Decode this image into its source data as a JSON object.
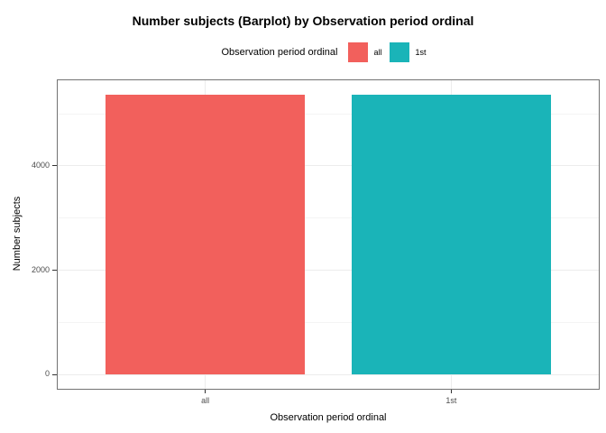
{
  "chart_data": {
    "type": "bar",
    "title": "Number subjects (Barplot) by Observation period ordinal",
    "xlabel": "Observation period ordinal",
    "ylabel": "Number subjects",
    "categories": [
      "all",
      "1st"
    ],
    "values": [
      5370,
      5370
    ],
    "bar_colors": [
      "#F2605C",
      "#1AB4B8"
    ],
    "ylim": [
      -270,
      5640
    ],
    "yticks": [
      0,
      2000,
      4000
    ],
    "yticks_minor": [
      1000,
      3000,
      5000
    ],
    "grid": true,
    "legend": {
      "title": "Observation period ordinal",
      "position": "top",
      "entries": [
        {
          "label": "all",
          "color": "#F2605C"
        },
        {
          "label": "1st",
          "color": "#1AB4B8"
        }
      ]
    }
  },
  "style": {
    "panel_border": "#737373",
    "grid_major": "#ECECEC",
    "grid_minor": "#F4F4F4",
    "tick_mark_color": "#333333",
    "tick_label_color": "#4D4D4D",
    "title_color": "#000000"
  }
}
